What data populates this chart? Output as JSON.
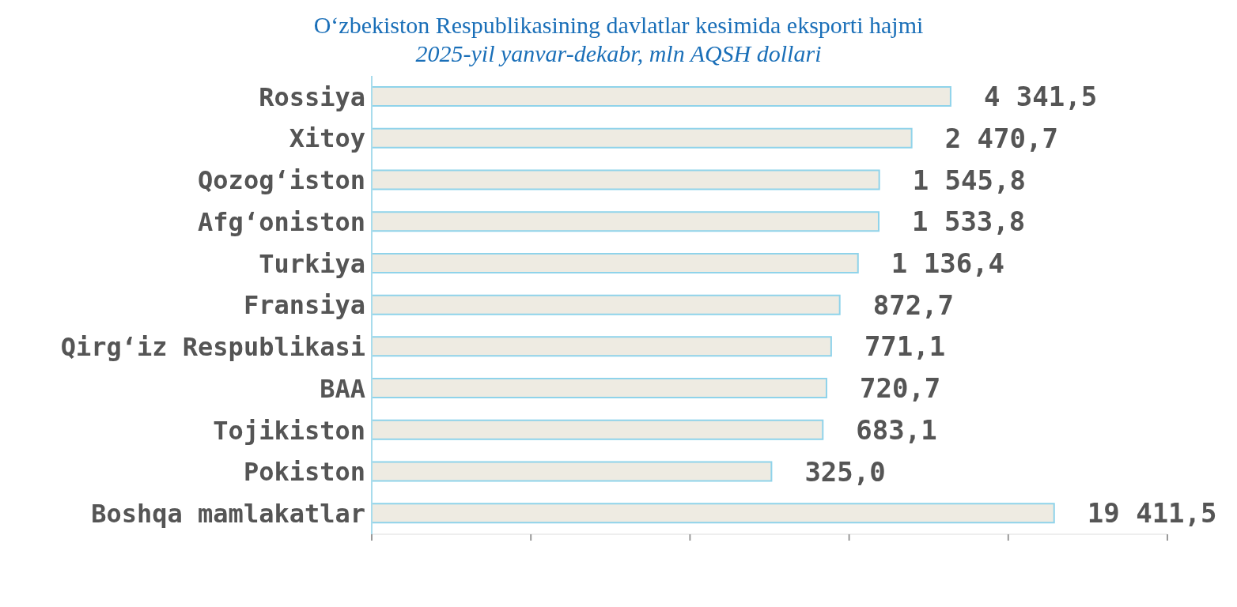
{
  "chart_data": {
    "type": "bar",
    "orientation": "horizontal",
    "title": "O‘zbekiston Respublikasining davlatlar kesimida eksporti hajmi",
    "subtitle": "2025-yil yanvar-dekabr, mln AQSH dollari",
    "categories": [
      "Rossiya",
      "Xitoy",
      "Qozog‘iston",
      "Afg‘oniston",
      "Turkiya",
      "Fransiya",
      "Qirg‘iz Respublikasi",
      "BAA",
      "Tojikiston",
      "Pokiston",
      "Boshqa mamlakatlar"
    ],
    "values": [
      4341.5,
      2470.7,
      1545.8,
      1533.8,
      1136.4,
      872.7,
      771.1,
      720.7,
      683.1,
      325.0,
      19411.5
    ],
    "value_labels": [
      "4 341,5",
      "2 470,7",
      "1 545,8",
      "1 533,8",
      "1 136,4",
      "872,7",
      "771,1",
      "720,7",
      "683,1",
      "325,0",
      "19 411,5"
    ],
    "color": "#eeebe2",
    "log": "x",
    "xlim": [
      1,
      100000
    ],
    "xticks": [
      {
        "value": 1,
        "label": null
      },
      {
        "value": 10,
        "label": null
      },
      {
        "value": 100,
        "label": null
      },
      {
        "value": 1000,
        "label": null
      },
      {
        "value": 10000,
        "label": null
      },
      {
        "value": 100000,
        "label": null
      }
    ],
    "tick_labels": "y",
    "grid": false,
    "legend": false
  }
}
